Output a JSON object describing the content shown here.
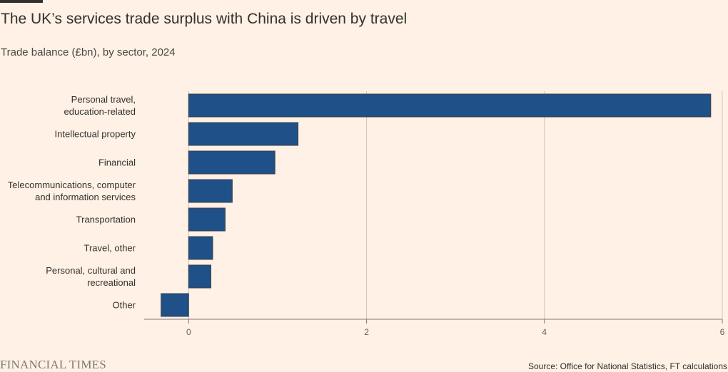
{
  "header": {
    "title": "The UK’s services trade surplus with China is driven by travel",
    "subtitle": "Trade balance (£bn), by sector, 2024"
  },
  "footer": {
    "logo": "FINANCIAL TIMES",
    "source": "Source: Office for National Statistics, FT calculations"
  },
  "colors": {
    "background": "#FFF1E5",
    "bar": "#1F5087",
    "bar_stroke": "#3A3F4A",
    "grid": "#CEC6B9",
    "axis": "#807973"
  },
  "chart_data": {
    "type": "bar",
    "orientation": "horizontal",
    "title": "The UK’s services trade surplus with China is driven by travel",
    "subtitle": "Trade balance (£bn), by sector, 2024",
    "xlabel": "",
    "ylabel": "",
    "xlim": [
      -0.5,
      6
    ],
    "xticks": [
      0,
      2,
      4,
      6
    ],
    "grid": true,
    "categories": [
      [
        "Personal travel,",
        "education-related"
      ],
      [
        "Intellectual property"
      ],
      [
        "Financial"
      ],
      [
        "Telecommunications, computer",
        "and information services"
      ],
      [
        "Transportation"
      ],
      [
        "Travel, other"
      ],
      [
        "Personal, cultural and",
        "recreational"
      ],
      [
        "Other"
      ]
    ],
    "values": [
      5.87,
      1.23,
      0.97,
      0.49,
      0.41,
      0.27,
      0.25,
      -0.31
    ]
  }
}
